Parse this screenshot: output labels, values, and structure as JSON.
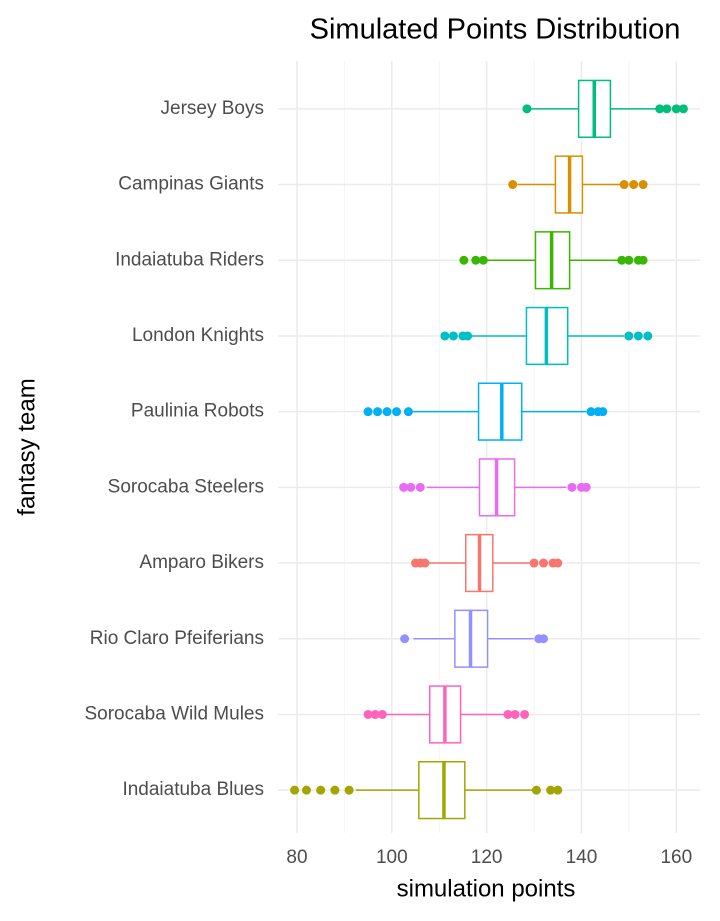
{
  "chart_data": {
    "type": "boxplot",
    "orientation": "horizontal",
    "title": "Simulated Points Distribution",
    "x_label": "simulation points",
    "y_label": "fantasy team",
    "xlim": [
      76,
      165
    ],
    "xticks": [
      80,
      100,
      120,
      140,
      160
    ],
    "grid": true,
    "series": [
      {
        "name": "Jersey Boys",
        "color": "#00BF7D",
        "min": 129,
        "q1": 139.4,
        "median": 142.7,
        "q3": 146.1,
        "max": 155.8,
        "outliers": [
          128.5,
          156.5,
          158,
          160,
          161.5
        ]
      },
      {
        "name": "Campinas Giants",
        "color": "#D89000",
        "min": 126.5,
        "q1": 134.5,
        "median": 137.5,
        "q3": 140.2,
        "max": 148.2,
        "outliers": [
          125.5,
          149,
          151,
          153
        ]
      },
      {
        "name": "Indaiatuba Riders",
        "color": "#39B600",
        "min": 120,
        "q1": 130.3,
        "median": 133.7,
        "q3": 137.5,
        "max": 147.8,
        "outliers": [
          115.2,
          117.7,
          119.3,
          148.5,
          150,
          152,
          153
        ]
      },
      {
        "name": "London Knights",
        "color": "#00BFC4",
        "min": 116.4,
        "q1": 128.4,
        "median": 132.6,
        "q3": 137.1,
        "max": 149,
        "outliers": [
          111.2,
          113,
          115,
          116,
          150,
          152,
          154
        ]
      },
      {
        "name": "Paulinia Robots",
        "color": "#00B0F6",
        "min": 104.4,
        "q1": 118.3,
        "median": 123.2,
        "q3": 127.4,
        "max": 141,
        "outliers": [
          95,
          97,
          99,
          101,
          103.5,
          142,
          143.5,
          144.5
        ]
      },
      {
        "name": "Sorocaba Steelers",
        "color": "#E76BF3",
        "min": 107.4,
        "q1": 118.5,
        "median": 122.1,
        "q3": 125.9,
        "max": 136.8,
        "outliers": [
          102.5,
          104,
          106,
          138,
          140,
          141
        ]
      },
      {
        "name": "Amparo Bikers",
        "color": "#F8766D",
        "min": 107.4,
        "q1": 115.6,
        "median": 118.5,
        "q3": 121.3,
        "max": 129.3,
        "outliers": [
          105,
          106,
          107,
          130,
          132,
          134,
          135
        ]
      },
      {
        "name": "Rio Claro Pfeiferians",
        "color": "#9590FF",
        "min": 104.6,
        "q1": 113.3,
        "median": 116.6,
        "q3": 120.2,
        "max": 129.9,
        "outliers": [
          102.7,
          131,
          132
        ]
      },
      {
        "name": "Sorocaba Wild Mules",
        "color": "#FF62BC",
        "min": 98.5,
        "q1": 108,
        "median": 111.2,
        "q3": 114.5,
        "max": 123.6,
        "outliers": [
          95,
          96.5,
          98,
          124.5,
          126,
          128
        ]
      },
      {
        "name": "Indaiatuba Blues",
        "color": "#A3A500",
        "min": 92.4,
        "q1": 105.7,
        "median": 111,
        "q3": 115.4,
        "max": 129.9,
        "outliers": [
          79.5,
          82,
          85,
          88,
          91,
          130.5,
          133.5,
          135
        ]
      }
    ]
  }
}
